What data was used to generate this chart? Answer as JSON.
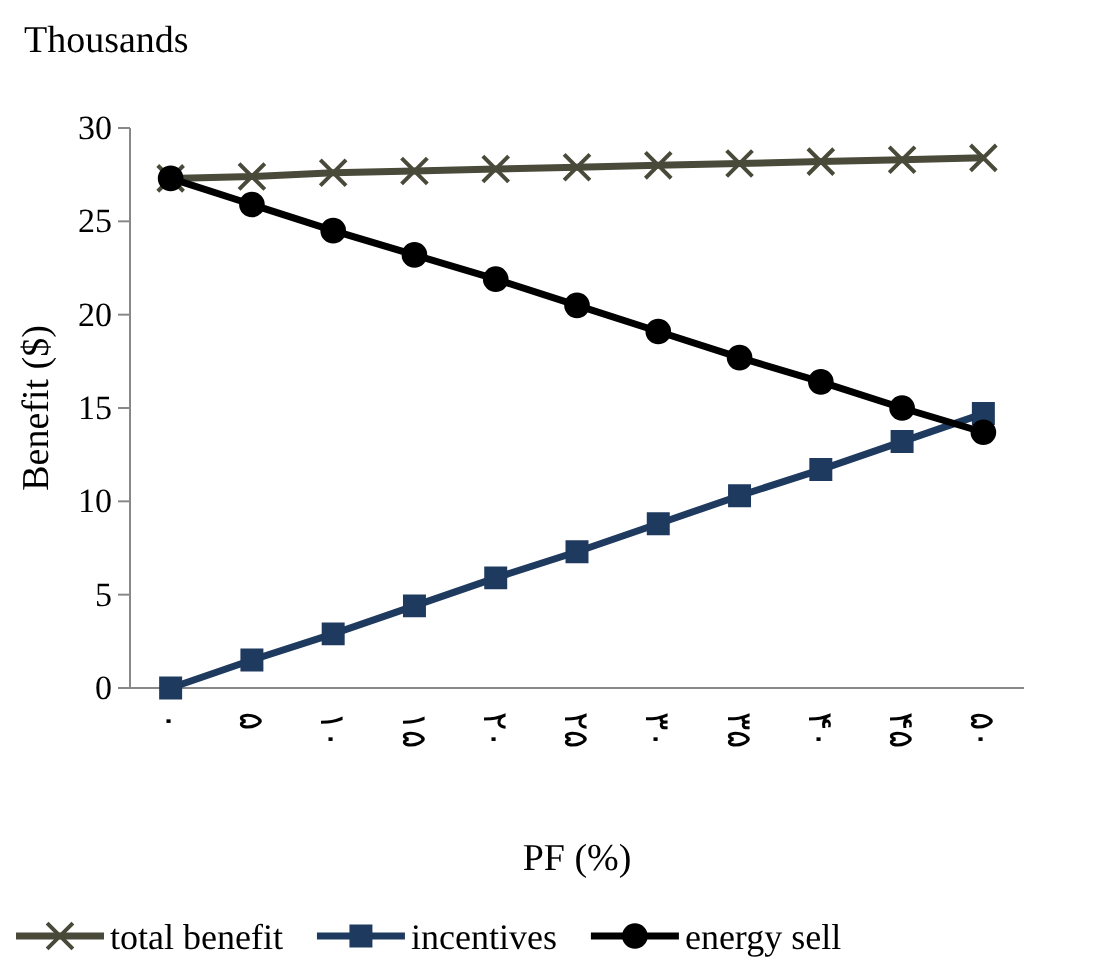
{
  "chart_data": {
    "type": "line",
    "xlabel": "PF (%)",
    "ylabel": "Benefit ($)",
    "annotations": [
      "Thousands"
    ],
    "categories": [
      "۰",
      "۵",
      "۱۰",
      "۱۵",
      "۲۰",
      "۲۵",
      "۳۰",
      "۳۵",
      "۴۰",
      "۴۵",
      "۵۰"
    ],
    "ylim": [
      0,
      30
    ],
    "yticks": [
      0,
      5,
      10,
      15,
      20,
      25,
      30
    ],
    "grid": false,
    "legend": "bottom",
    "line_style": "solid",
    "series": [
      {
        "name": "total benefit",
        "color": "#4a4a3a",
        "marker": "cross",
        "values": [
          27.3,
          27.4,
          27.6,
          27.7,
          27.8,
          27.9,
          28.0,
          28.1,
          28.2,
          28.3,
          28.4
        ]
      },
      {
        "name": "incentives",
        "color": "#1f3a5f",
        "marker": "square",
        "values": [
          0,
          1.5,
          2.9,
          4.4,
          5.9,
          7.3,
          8.8,
          10.3,
          11.7,
          13.2,
          14.7
        ]
      },
      {
        "name": "energy sell",
        "color": "#000000",
        "marker": "circle",
        "values": [
          27.3,
          25.9,
          24.5,
          23.2,
          21.9,
          20.5,
          19.1,
          17.7,
          16.4,
          15.0,
          13.7
        ]
      }
    ]
  }
}
